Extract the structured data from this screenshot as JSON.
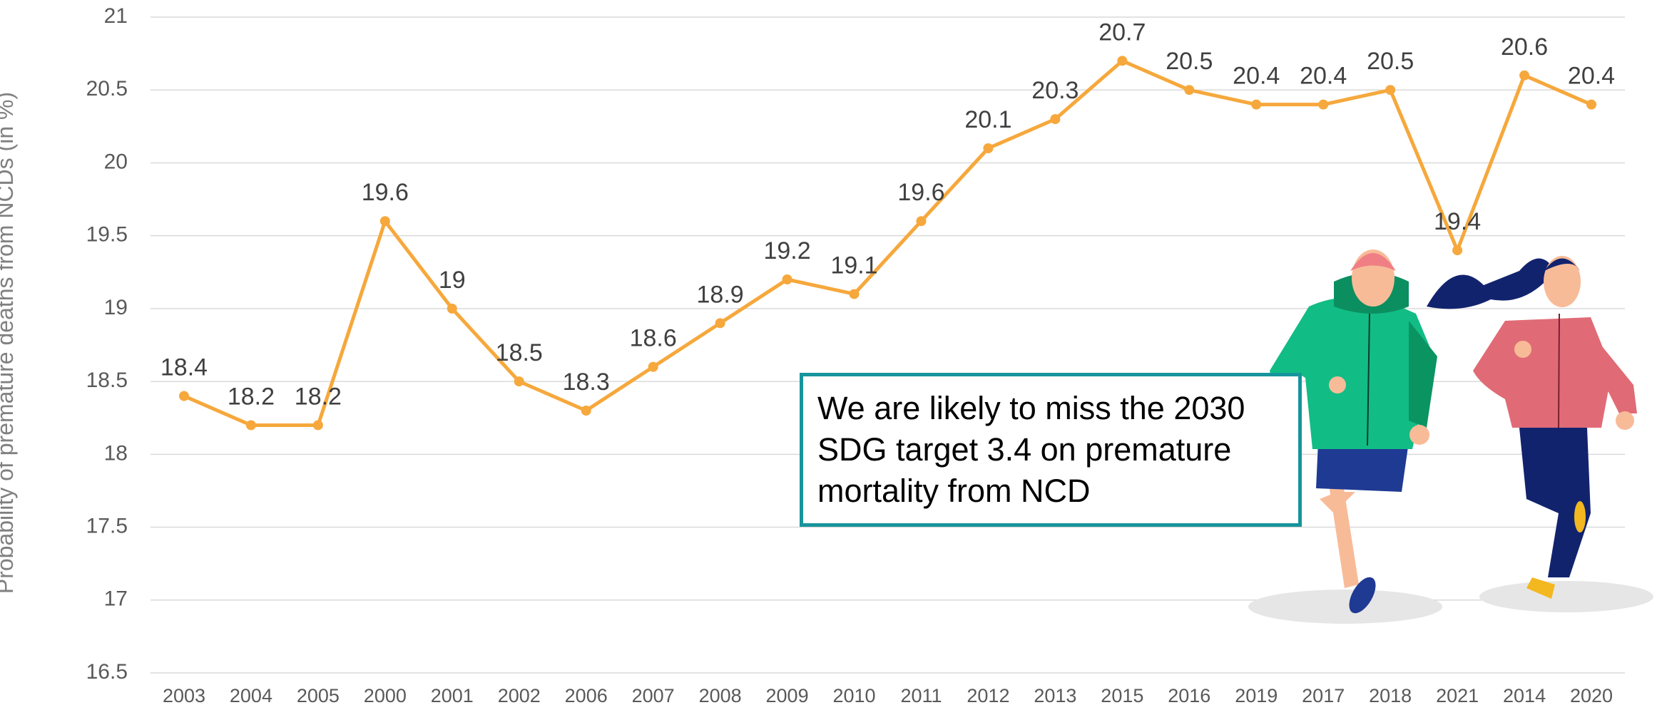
{
  "chart_data": {
    "type": "line",
    "y_label": "Probability of premature deaths from NCDs (in %)",
    "annotation": "We are likely to miss the 2030 SDG target 3.4 on premature mortality from NCD",
    "categories": [
      "2003",
      "2004",
      "2005",
      "2000",
      "2001",
      "2002",
      "2006",
      "2007",
      "2008",
      "2009",
      "2010",
      "2011",
      "2012",
      "2013",
      "2015",
      "2016",
      "2019",
      "2017",
      "2018",
      "2021",
      "2014",
      "2020"
    ],
    "values": [
      18.4,
      18.2,
      18.2,
      19.6,
      19,
      18.5,
      18.3,
      18.6,
      18.9,
      19.2,
      19.1,
      19.6,
      20.1,
      20.3,
      20.7,
      20.5,
      20.4,
      20.4,
      20.5,
      19.4,
      20.6,
      20.4
    ],
    "color": "#f6a83c",
    "ylim": [
      16.5,
      21
    ],
    "yticks": [
      16.5,
      17,
      17.5,
      18,
      18.5,
      19,
      19.5,
      20,
      20.5,
      21
    ],
    "grid": true
  }
}
